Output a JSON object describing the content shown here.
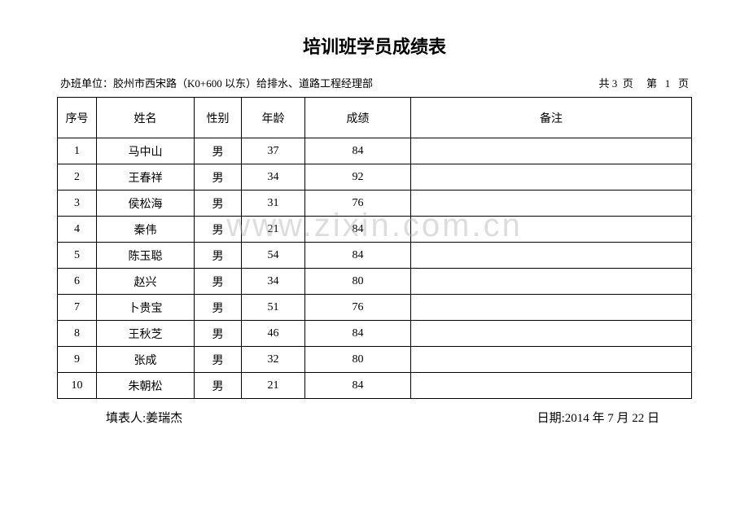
{
  "title": "培训班学员成绩表",
  "subtitle": {
    "left": "办班单位：胶州市西宋路（K0+600 以东）给排水、道路工程经理部",
    "right": "共 3  页     第   1   页"
  },
  "table": {
    "headers": {
      "seq": "序号",
      "name": "姓名",
      "gender": "性别",
      "age": "年龄",
      "score": "成绩",
      "remark": "备注"
    },
    "rows": [
      {
        "seq": "1",
        "name": "马中山",
        "gender": "男",
        "age": "37",
        "score": "84",
        "remark": ""
      },
      {
        "seq": "2",
        "name": "王春祥",
        "gender": "男",
        "age": "34",
        "score": "92",
        "remark": ""
      },
      {
        "seq": "3",
        "name": "侯松海",
        "gender": "男",
        "age": "31",
        "score": "76",
        "remark": ""
      },
      {
        "seq": "4",
        "name": "秦伟",
        "gender": "男",
        "age": "21",
        "score": "84",
        "remark": ""
      },
      {
        "seq": "5",
        "name": "陈玉聪",
        "gender": "男",
        "age": "54",
        "score": "84",
        "remark": ""
      },
      {
        "seq": "6",
        "name": "赵兴",
        "gender": "男",
        "age": "34",
        "score": "80",
        "remark": ""
      },
      {
        "seq": "7",
        "name": "卜贵宝",
        "gender": "男",
        "age": "51",
        "score": "76",
        "remark": ""
      },
      {
        "seq": "8",
        "name": "王秋芝",
        "gender": "男",
        "age": "46",
        "score": "84",
        "remark": ""
      },
      {
        "seq": "9",
        "name": "张成",
        "gender": "男",
        "age": "32",
        "score": "80",
        "remark": ""
      },
      {
        "seq": "10",
        "name": "朱朝松",
        "gender": "男",
        "age": "21",
        "score": "84",
        "remark": ""
      }
    ]
  },
  "footer": {
    "left": "填表人:姜瑞杰",
    "right": "日期:2014 年 7 月 22 日"
  },
  "watermark": "www.zixin.com.cn",
  "styling": {
    "background_color": "#ffffff",
    "border_color": "#000000",
    "text_color": "#000000",
    "title_fontsize": 22,
    "subtitle_fontsize": 13,
    "table_fontsize": 14,
    "footer_fontsize": 15,
    "header_row_height": 50,
    "data_row_height": 32,
    "watermark_color": "rgba(180,180,180,0.45)",
    "column_widths": {
      "seq": 48,
      "name": 120,
      "gender": 58,
      "age": 78,
      "score": 130
    }
  }
}
